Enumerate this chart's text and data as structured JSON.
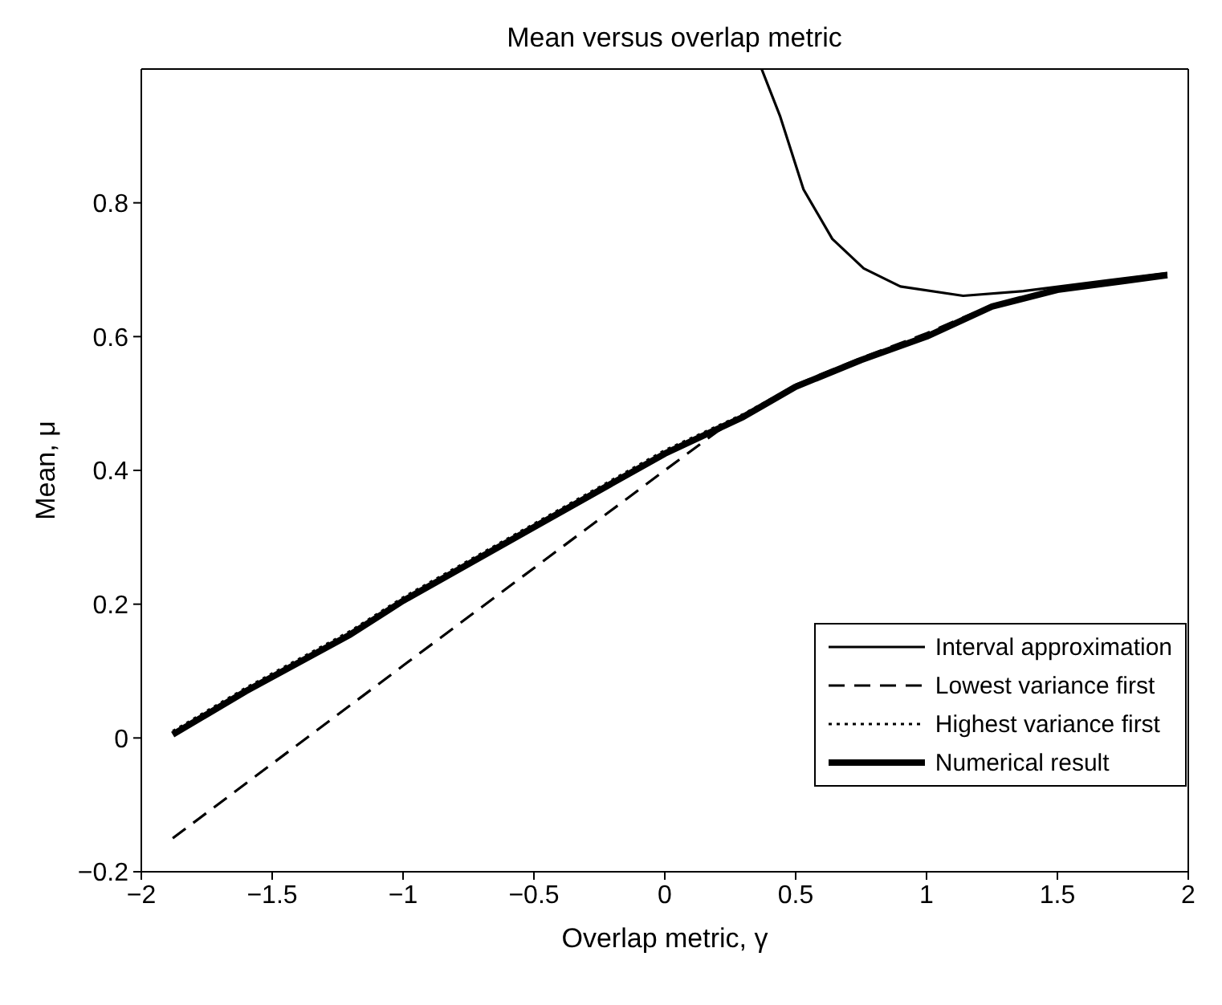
{
  "chart_data": {
    "type": "line",
    "title": "Mean versus overlap metric",
    "xlabel": "Overlap metric, γ",
    "ylabel": "Mean, μ",
    "xlim": [
      -2,
      2
    ],
    "xticks": [
      -2,
      -1.5,
      -1,
      -0.5,
      0,
      0.5,
      1,
      1.5,
      2
    ],
    "ylim": [
      -0.2,
      1
    ],
    "yticks": [
      -0.2,
      0,
      0.2,
      0.4,
      0.6,
      0.8
    ],
    "grid": false,
    "legend": "bottom right",
    "marker": "none",
    "series": [
      {
        "name": "Interval approximation",
        "color": "#000000",
        "line_style": "solid",
        "x": [
          0.37,
          0.44,
          0.53,
          0.64,
          0.76,
          0.9,
          1.14,
          1.37,
          1.69,
          1.92
        ],
        "values": [
          1,
          0.93,
          0.82,
          0.746,
          0.702,
          0.675,
          0.661,
          0.668,
          0.684,
          0.695
        ]
      },
      {
        "name": "Lowest variance first",
        "color": "#000000",
        "line_style": "dashed",
        "x": [
          -1.88,
          -1,
          0,
          0.2,
          0.5,
          0.75,
          1,
          1.25,
          1.5,
          1.75,
          1.92
        ],
        "values": [
          -0.15,
          0.108,
          0.4,
          0.458,
          0.528,
          0.568,
          0.605,
          0.647,
          0.672,
          0.685,
          0.693
        ]
      },
      {
        "name": "Highest variance first",
        "color": "#000000",
        "line_style": "dotted",
        "x": [
          -1.88,
          -1.6,
          -1.2,
          -1,
          -0.5,
          0,
          0.3,
          0.5,
          0.75,
          1,
          1.25,
          1.5,
          1.75,
          1.92
        ],
        "values": [
          0.01,
          0.075,
          0.16,
          0.21,
          0.32,
          0.43,
          0.484,
          0.527,
          0.566,
          0.602,
          0.645,
          0.67,
          0.683,
          0.692
        ]
      },
      {
        "name": "Numerical result",
        "color": "#000000",
        "line_style": "solid",
        "x": [
          -1.88,
          -1.6,
          -1.2,
          -1,
          -0.5,
          0,
          0.3,
          0.5,
          0.75,
          1,
          1.25,
          1.5,
          1.75,
          1.92
        ],
        "values": [
          0.005,
          0.07,
          0.155,
          0.205,
          0.315,
          0.425,
          0.48,
          0.525,
          0.565,
          0.6,
          0.645,
          0.67,
          0.683,
          0.692
        ]
      }
    ]
  }
}
